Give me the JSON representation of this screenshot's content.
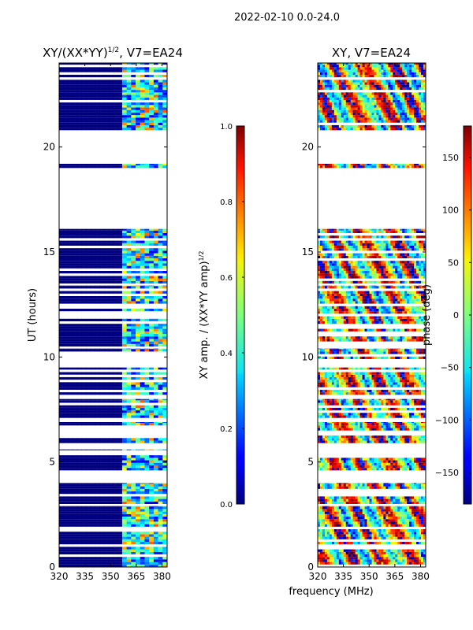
{
  "figure": {
    "suptitle": "2022-02-10 0.0-24.0",
    "xlabel": "frequency (MHz)"
  },
  "chart_data": [
    {
      "type": "heatmap",
      "title_main": "XY/(XX*YY)",
      "title_exp": "1/2",
      "title_suffix": ", V7=EA24",
      "ylabel": "UT (hours)",
      "xlim": [
        320,
        383
      ],
      "ylim": [
        0,
        24
      ],
      "x_ticks": [
        320,
        335,
        350,
        365,
        380
      ],
      "y_ticks": [
        0,
        5,
        10,
        15,
        20
      ],
      "data_blocks_ut": [
        [
          0.0,
          2.9
        ],
        [
          3.0,
          4.0
        ],
        [
          4.6,
          5.6
        ],
        [
          5.9,
          6.9
        ],
        [
          7.1,
          8.0
        ],
        [
          8.2,
          9.5
        ],
        [
          9.9,
          10.4
        ],
        [
          10.5,
          13.4
        ],
        [
          13.5,
          16.1
        ],
        [
          19.0,
          19.2
        ],
        [
          20.8,
          24.0
        ]
      ],
      "colorbar": {
        "label_main": "XY amp. / (XX*YY amp)",
        "label_exp": "1/2",
        "min": 0.0,
        "max": 1.0,
        "ticks": [
          "0.0",
          "0.2",
          "0.4",
          "0.6",
          "0.8",
          "1.0"
        ]
      }
    },
    {
      "type": "heatmap",
      "title": "XY, V7=EA24",
      "ylabel": "",
      "xlim": [
        320,
        383
      ],
      "ylim": [
        0,
        24
      ],
      "x_ticks": [
        320,
        335,
        350,
        365,
        380
      ],
      "y_ticks": [
        0,
        5,
        10,
        15,
        20
      ],
      "data_blocks_ut": [
        [
          0.0,
          2.9
        ],
        [
          3.0,
          4.0
        ],
        [
          4.6,
          5.6
        ],
        [
          5.9,
          6.9
        ],
        [
          7.1,
          8.0
        ],
        [
          8.2,
          9.5
        ],
        [
          9.9,
          10.4
        ],
        [
          10.5,
          13.4
        ],
        [
          13.5,
          16.1
        ],
        [
          19.0,
          19.2
        ],
        [
          20.8,
          24.0
        ]
      ],
      "colorbar": {
        "label": "phase (deg)",
        "min": -180,
        "max": 180,
        "ticks": [
          "−150",
          "−100",
          "−50",
          "0",
          "50",
          "100",
          "150"
        ]
      }
    }
  ]
}
